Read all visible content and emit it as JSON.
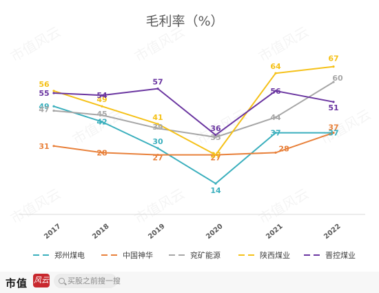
{
  "chart_data": {
    "type": "line",
    "title": "毛利率（%）",
    "categories": [
      "2017",
      "2018",
      "2019",
      "2020",
      "2021",
      "2022"
    ],
    "ylim": [
      0,
      80
    ],
    "grid": false,
    "legend_position": "bottom",
    "series": [
      {
        "name": "郑州煤电",
        "color": "#3aafbd",
        "values": [
          49,
          42,
          30,
          14,
          37,
          37
        ]
      },
      {
        "name": "中国神华",
        "color": "#e8803a",
        "values": [
          31,
          28,
          27,
          27,
          28,
          37
        ]
      },
      {
        "name": "兖矿能源",
        "color": "#a6a6a6",
        "values": [
          47,
          45,
          39,
          35,
          44,
          60
        ]
      },
      {
        "name": "陕西煤业",
        "color": "#f5c118",
        "values": [
          56,
          49,
          41,
          27,
          64,
          67
        ]
      },
      {
        "name": "晋控煤业",
        "color": "#6a35a0",
        "values": [
          55,
          54,
          57,
          36,
          56,
          51
        ]
      }
    ]
  },
  "watermark": {
    "text": "市值风云"
  },
  "footer": {
    "brand": "市值",
    "brand_mark": "风云",
    "search_placeholder": "买股之前搜一搜"
  }
}
